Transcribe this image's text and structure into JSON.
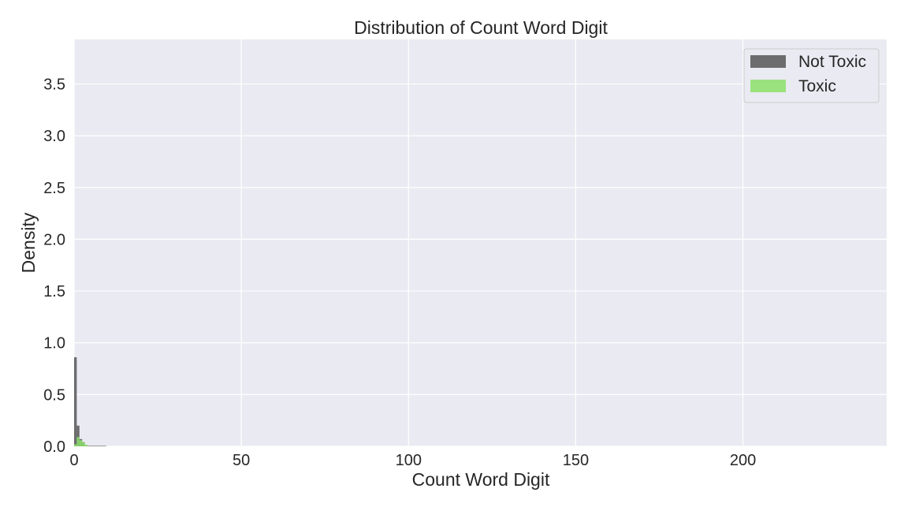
{
  "chart_data": {
    "type": "histogram",
    "title": "Distribution of Count Word Digit",
    "xlabel": "Count Word Digit",
    "ylabel": "Density",
    "xlim": [
      0,
      243
    ],
    "ylim": [
      0,
      3.93
    ],
    "xticks": [
      0,
      50,
      100,
      150,
      200
    ],
    "xtick_labels": [
      "0",
      "50",
      "100",
      "150",
      "200"
    ],
    "yticks": [
      0.0,
      0.5,
      1.0,
      1.5,
      2.0,
      2.5,
      3.0,
      3.5
    ],
    "ytick_labels": [
      "0.0",
      "0.5",
      "1.0",
      "1.5",
      "2.0",
      "2.5",
      "3.0",
      "3.5"
    ],
    "grid": true,
    "legend_position": "top-right",
    "series": [
      {
        "name": "Not Toxic",
        "color": "#4c4c4c",
        "opacity": 0.8,
        "bins": [
          {
            "x0": 0,
            "x1": 0.8,
            "density": 0.86
          },
          {
            "x0": 0.8,
            "x1": 1.6,
            "density": 0.2
          },
          {
            "x0": 1.6,
            "x1": 2.4,
            "density": 0.07
          },
          {
            "x0": 2.4,
            "x1": 3.2,
            "density": 0.04
          },
          {
            "x0": 3.2,
            "x1": 4.0,
            "density": 0.01
          },
          {
            "x0": 4.0,
            "x1": 9.6,
            "density": 0.005
          }
        ]
      },
      {
        "name": "Toxic",
        "color": "#8be06a",
        "opacity": 0.85,
        "bins": [
          {
            "x0": 0,
            "x1": 0.8,
            "density": 0.02
          },
          {
            "x0": 0.8,
            "x1": 1.6,
            "density": 0.09
          },
          {
            "x0": 1.6,
            "x1": 2.4,
            "density": 0.06
          },
          {
            "x0": 2.4,
            "x1": 3.2,
            "density": 0.04
          },
          {
            "x0": 3.2,
            "x1": 4.0,
            "density": 0.015
          }
        ]
      }
    ]
  }
}
